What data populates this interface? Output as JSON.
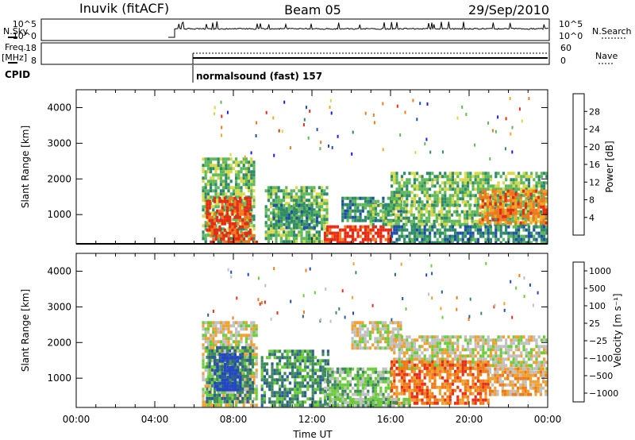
{
  "header": {
    "station": "Inuvik (fitACF)",
    "beam": "Beam 05",
    "date": "29/Sep/2010"
  },
  "noise_panel": {
    "left_label": "N.Sky",
    "right_label": "N.Search",
    "left_ticks": [
      "10^5",
      "10^0"
    ],
    "right_ticks": [
      "10^5",
      "10^0"
    ]
  },
  "freq_panel": {
    "left_label_1": "Freq.",
    "left_label_2": "[MHz]",
    "right_label": "Nave",
    "left_ticks": [
      "18",
      "8"
    ],
    "right_ticks": [
      "60",
      "0"
    ]
  },
  "cpid": {
    "label": "CPID",
    "text": "normalsound (fast) 157"
  },
  "colors": {
    "power_scale": [
      "#1a1aff",
      "#1f4fa8",
      "#2f8a6a",
      "#5fb85a",
      "#d8d84a",
      "#f5a623",
      "#f0781e",
      "#e82a12"
    ],
    "velocity_scale": [
      "#2346c8",
      "#2f5f8c",
      "#3d8a5c",
      "#6ccd3a",
      "#c0c0c0",
      "#f0a030",
      "#f07a18",
      "#e83018"
    ]
  },
  "chart_data": [
    {
      "type": "heatmap",
      "name": "power",
      "ylabel": "Slant Range [km]",
      "xlabel": "",
      "colorbar_label": "Power [dB]",
      "colorbar_ticks": [
        "28",
        "24",
        "20",
        "16",
        "12",
        "8",
        "4"
      ],
      "xlim": [
        0,
        24
      ],
      "ylim": [
        180,
        4500
      ],
      "yticks": [
        "1000",
        "2000",
        "3000",
        "4000"
      ],
      "ytick_values": [
        1000,
        2000,
        3000,
        4000
      ],
      "regions": [
        {
          "x0": 6.4,
          "x1": 9.0,
          "y0": 180,
          "y1": 2600,
          "level": 3
        },
        {
          "x0": 6.6,
          "x1": 8.8,
          "y0": 450,
          "y1": 1500,
          "level": 7
        },
        {
          "x0": 6.8,
          "x1": 9.2,
          "y0": 180,
          "y1": 450,
          "level": 7
        },
        {
          "x0": 9.6,
          "x1": 12.8,
          "y0": 180,
          "y1": 1800,
          "level": 3
        },
        {
          "x0": 10.0,
          "x1": 12.2,
          "y0": 600,
          "y1": 1300,
          "level": 2
        },
        {
          "x0": 12.6,
          "x1": 16.0,
          "y0": 180,
          "y1": 700,
          "level": 7
        },
        {
          "x0": 13.5,
          "x1": 16.5,
          "y0": 800,
          "y1": 1500,
          "level": 2
        },
        {
          "x0": 14.8,
          "x1": 24.0,
          "y0": 700,
          "y1": 1300,
          "level": 3
        },
        {
          "x0": 16.0,
          "x1": 24.0,
          "y0": 1300,
          "y1": 2200,
          "level": 3
        },
        {
          "x0": 20.5,
          "x1": 24.0,
          "y0": 800,
          "y1": 1700,
          "level": 6
        },
        {
          "x0": 16.0,
          "x1": 24.0,
          "y0": 180,
          "y1": 700,
          "level": 2
        }
      ]
    },
    {
      "type": "heatmap",
      "name": "velocity",
      "ylabel": "Slant Range [km]",
      "xlabel": "Time UT",
      "colorbar_label": "Velocity [m s⁻¹]",
      "colorbar_ticks": [
        "1000",
        "500",
        "100",
        "25",
        "−25",
        "−100",
        "−500",
        "−1000"
      ],
      "xlim": [
        0,
        24
      ],
      "ylim": [
        180,
        4500
      ],
      "xticks": [
        "00:00",
        "04:00",
        "08:00",
        "12:00",
        "16:00",
        "20:00",
        "00:00"
      ],
      "xtick_values": [
        0,
        4,
        8,
        12,
        16,
        20,
        24
      ],
      "yticks": [
        "1000",
        "2000",
        "3000",
        "4000"
      ],
      "ytick_values": [
        1000,
        2000,
        3000,
        4000
      ],
      "regions": [
        {
          "x0": 6.4,
          "x1": 9.2,
          "y0": 180,
          "y1": 2600,
          "level": 4
        },
        {
          "x0": 6.6,
          "x1": 9.0,
          "y0": 300,
          "y1": 1900,
          "level": 2
        },
        {
          "x0": 7.0,
          "x1": 8.4,
          "y0": 700,
          "y1": 1700,
          "level": 0
        },
        {
          "x0": 9.4,
          "x1": 12.8,
          "y0": 180,
          "y1": 1800,
          "level": 2
        },
        {
          "x0": 12.6,
          "x1": 16.0,
          "y0": 180,
          "y1": 1300,
          "level": 3
        },
        {
          "x0": 14.0,
          "x1": 16.5,
          "y0": 1800,
          "y1": 2600,
          "level": 4
        },
        {
          "x0": 16.0,
          "x1": 24.0,
          "y0": 1300,
          "y1": 2200,
          "level": 4
        },
        {
          "x0": 16.0,
          "x1": 21.0,
          "y0": 300,
          "y1": 1500,
          "level": 6
        },
        {
          "x0": 21.0,
          "x1": 24.0,
          "y0": 500,
          "y1": 1300,
          "level": 5
        },
        {
          "x0": 13.0,
          "x1": 17.0,
          "y0": 180,
          "y1": 450,
          "level": 3
        }
      ]
    }
  ]
}
